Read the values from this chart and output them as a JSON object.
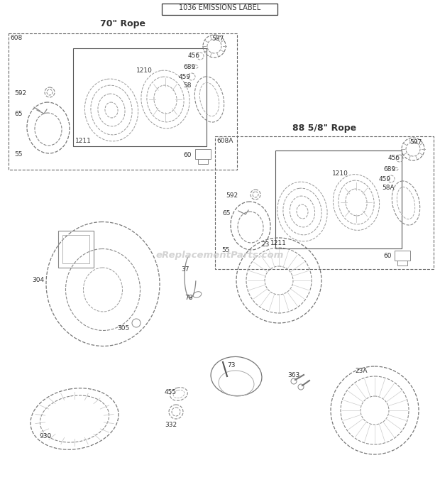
{
  "bg_color": "#ffffff",
  "title": "1036 EMISSIONS LABEL",
  "box1_title": "70\" Rope",
  "box1_label": "608",
  "box2_title": "88 5/8\" Rope",
  "box2_label": "608A",
  "watermark": "eReplacementParts.com"
}
